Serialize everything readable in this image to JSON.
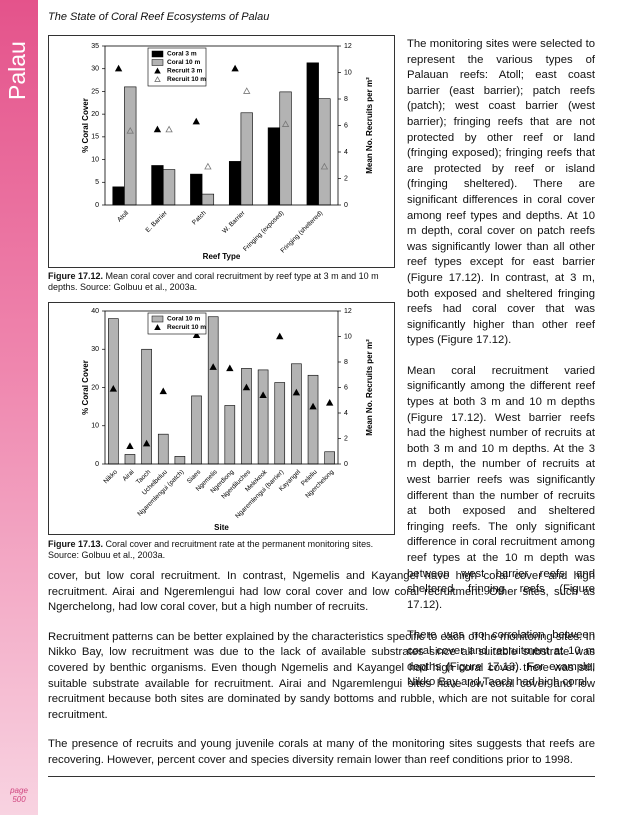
{
  "header": {
    "title": "The State of Coral Reef Ecosystems of Palau"
  },
  "sidebar": {
    "label": "Palau"
  },
  "chart_data": [
    {
      "type": "bar",
      "xlabel": "Reef Type",
      "ylabel": "% Coral Cover",
      "y2label": "Mean No. Recruits per m²",
      "categories": [
        "Atoll",
        "E. Barrier",
        "Patch",
        "W. Barrier",
        "Fringing (exposed)",
        "Fringing (sheltered)"
      ],
      "ylim": [
        0,
        35
      ],
      "yticks": [
        0,
        5,
        10,
        15,
        20,
        25,
        30,
        35
      ],
      "y2lim": [
        0,
        12
      ],
      "y2ticks": [
        0,
        2,
        4,
        6,
        8,
        10,
        12
      ],
      "series": [
        {
          "name": "Coral 3 m",
          "type": "bar",
          "color": "#000000",
          "values": [
            4,
            8.7,
            6.8,
            9.6,
            17,
            31.3
          ]
        },
        {
          "name": "Coral 10 m",
          "type": "bar",
          "color": "#b3b3b3",
          "values": [
            26,
            7.8,
            2.4,
            20.3,
            24.9,
            23.4
          ]
        },
        {
          "name": "Recruit 3 m",
          "type": "scatter",
          "marker": "filled-triangle",
          "color": "#000000",
          "axis": "y2",
          "values": [
            10.3,
            5.7,
            6.3,
            10.3,
            5.4,
            2.9
          ]
        },
        {
          "name": "Recruit 10 m",
          "type": "scatter",
          "marker": "open-triangle",
          "color": "#777777",
          "axis": "y2",
          "values": [
            5.6,
            5.7,
            2.9,
            8.6,
            6.1,
            2.9
          ]
        }
      ]
    },
    {
      "type": "bar",
      "xlabel": "Site",
      "ylabel": "% Coral Cover",
      "y2label": "Mean No. Recruits per m²",
      "categories": [
        "Nikko",
        "Airai",
        "Taoch",
        "Uchelbeluu",
        "Ngaremlengui (patch)",
        "Siaes",
        "Ngemelis",
        "Ngerdiong",
        "Ngerdiluches",
        "Melekeok",
        "Ngaremlengui (barrier)",
        "Kayangel",
        "Peleliu",
        "Ngerchelong"
      ],
      "ylim": [
        0,
        40
      ],
      "yticks": [
        0,
        10,
        20,
        30,
        40
      ],
      "y2lim": [
        0,
        12
      ],
      "y2ticks": [
        0,
        2,
        4,
        6,
        8,
        10,
        12
      ],
      "series": [
        {
          "name": "Coral 10 m",
          "type": "bar",
          "color": "#b3b3b3",
          "values": [
            38,
            2.5,
            30,
            7.8,
            2,
            17.8,
            38.5,
            15.3,
            25,
            24.6,
            21.3,
            26.2,
            23.2,
            3.2
          ]
        },
        {
          "name": "Recruit 10 m",
          "type": "scatter",
          "marker": "filled-triangle",
          "color": "#000000",
          "axis": "y2",
          "values": [
            5.9,
            1.4,
            1.6,
            5.7,
            null,
            10.1,
            7.6,
            7.5,
            6.0,
            5.4,
            10.0,
            5.6,
            4.5,
            4.8
          ]
        }
      ]
    }
  ],
  "captions": [
    {
      "label": "Figure 17.12.",
      "text": "Mean coral cover and coral recruitment by reef type at 3 m and 10 m depths.  Source: Golbuu et al., 2003a."
    },
    {
      "label": "Figure 17.13.",
      "text": "Coral cover and recruitment rate at the permanent monitoring sites.  Source: Golbuu et al., 2003a."
    }
  ],
  "text": {
    "column": [
      "The monitoring sites were selected to represent the various types of Palauan reefs: Atoll; east coast barrier (east barrier); patch reefs (patch); west coast barrier (west barrier); fringing reefs that are not protected by other reef or land (fringing exposed); fringing reefs that are protected by reef or island (fringing sheltered).  There are significant differences in coral cover among reef types and depths.  At 10 m depth, coral cover on patch reefs was significantly lower than all other reef types except for east barrier (Figure 17.12).  In contrast, at 3 m, both exposed and sheltered fringing reefs had coral cover that was significantly higher than other reef types (Figure 17.12).",
      "Mean coral recruitment varied significantly among the different reef types at both 3 m and 10 m depths (Figure 17.12).  West barrier reefs had the highest number of recruits at both 3 m and 10 m depths.  At the 3 m depth, the number of recruits at west barrier reefs was significantly different than the number of recruits at both exposed and sheltered fringing reefs.  The only significant difference in coral recruitment among reef types at the 10 m depth was between west barrier reefs and sheltered fringing reefs (Figure 17.12).",
      "There was no correlation between coral cover and recruitment at 10 m depths (Figure 17.13).  For example, Nikko Bay and Taoch had high coral"
    ],
    "full": [
      "cover, but low coral recruitment.  In contrast, Ngemelis and Kayangel have high coral cover and high recruitment.  Airai and Ngeremlengui had low coral cover and low coral recruitment.  Other sites, such as Ngerchelong, had low coral cover, but a high number of recruits.",
      "Recruitment patterns can be better explained by the characteristics specific to each of the monitoring sites.  In Nikko Bay, low recruitment was due to the lack of available substrates since all suitable substrate was covered by benthic organisms.  Even though Ngemelis and Kayangel had high coral cover, there was still suitable substrate available for recruitment.  Airai and Ngaremlengui sites have low coral cover and low recruitment because both sites are dominated by sandy bottoms and rubble, which are not suitable for coral recruitment.",
      "The presence of recruits and young juvenile corals at many of the monitoring sites suggests that reefs are recovering.  However, percent cover and species diversity remain lower than reef conditions prior to 1998."
    ]
  },
  "footer": {
    "page_word": "page",
    "page_number": "500"
  }
}
